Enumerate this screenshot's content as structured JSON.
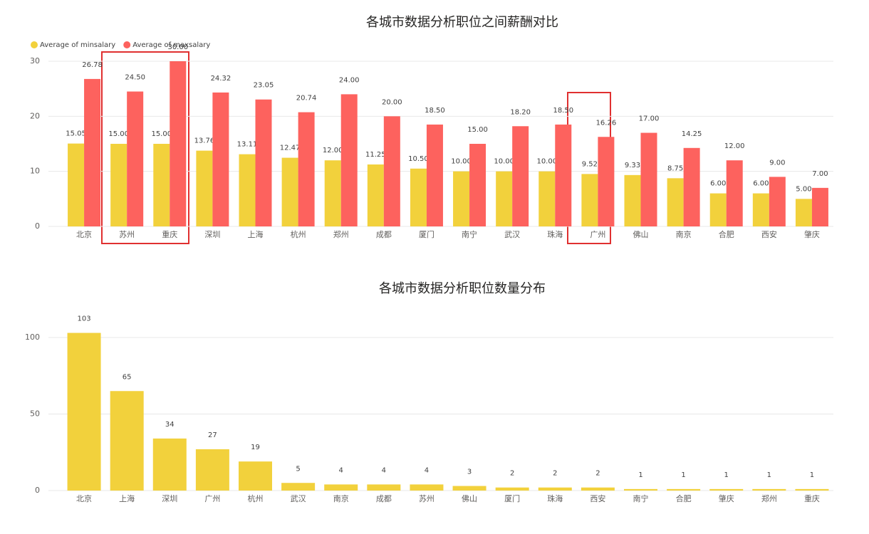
{
  "chart_data": [
    {
      "type": "bar",
      "title": "各城市数据分析职位之间薪酬对比",
      "categories": [
        "北京",
        "苏州",
        "重庆",
        "深圳",
        "上海",
        "杭州",
        "郑州",
        "成都",
        "厦门",
        "南宁",
        "武汉",
        "珠海",
        "广州",
        "佛山",
        "南京",
        "合肥",
        "西安",
        "肇庆"
      ],
      "series": [
        {
          "name": "Average of minsalary",
          "color": "#f2d13c",
          "values": [
            15.05,
            15,
            15,
            13.76,
            13.11,
            12.47,
            12,
            11.25,
            10.5,
            10,
            10,
            10,
            9.52,
            9.33,
            8.75,
            6,
            6,
            5
          ],
          "value_labels": [
            "15.05",
            "15.00",
            "15.00",
            "13.76",
            "13.11",
            "12.47",
            "12.00",
            "11.25",
            "10.50",
            "10.00",
            "10.00",
            "10.00",
            "9.52",
            "9.33",
            "8.75",
            "6.00",
            "6.00",
            "5.00"
          ]
        },
        {
          "name": "Average of maxsalary",
          "color": "#fd625e",
          "values": [
            26.78,
            24.5,
            30,
            24.32,
            23.05,
            20.74,
            24,
            20,
            18.5,
            15,
            18.2,
            18.5,
            16.26,
            17,
            14.25,
            12,
            9,
            7
          ],
          "value_labels": [
            "26.78",
            "24.50",
            "30.00",
            "24.32",
            "23.05",
            "20.74",
            "24.00",
            "20.00",
            "18.50",
            "15.00",
            "18.20",
            "18.50",
            "16.26",
            "17.00",
            "14.25",
            "12.00",
            "9.00",
            "7.00"
          ]
        }
      ],
      "ylim": [
        0,
        30
      ],
      "yticks": [
        0,
        10,
        20,
        30
      ],
      "grid": true
    },
    {
      "type": "bar",
      "title": "各城市数据分析职位数量分布",
      "categories": [
        "北京",
        "上海",
        "深圳",
        "广州",
        "杭州",
        "武汉",
        "南京",
        "成都",
        "苏州",
        "佛山",
        "厦门",
        "珠海",
        "西安",
        "南宁",
        "合肥",
        "肇庆",
        "郑州",
        "重庆"
      ],
      "series": [
        {
          "color": "#f2d13c",
          "values": [
            103,
            65,
            34,
            27,
            19,
            5,
            4,
            4,
            4,
            3,
            2,
            2,
            2,
            1,
            1,
            1,
            1,
            1
          ]
        }
      ],
      "ylim": [
        0,
        100
      ],
      "yticks": [
        0,
        50,
        100
      ],
      "grid": true
    }
  ]
}
